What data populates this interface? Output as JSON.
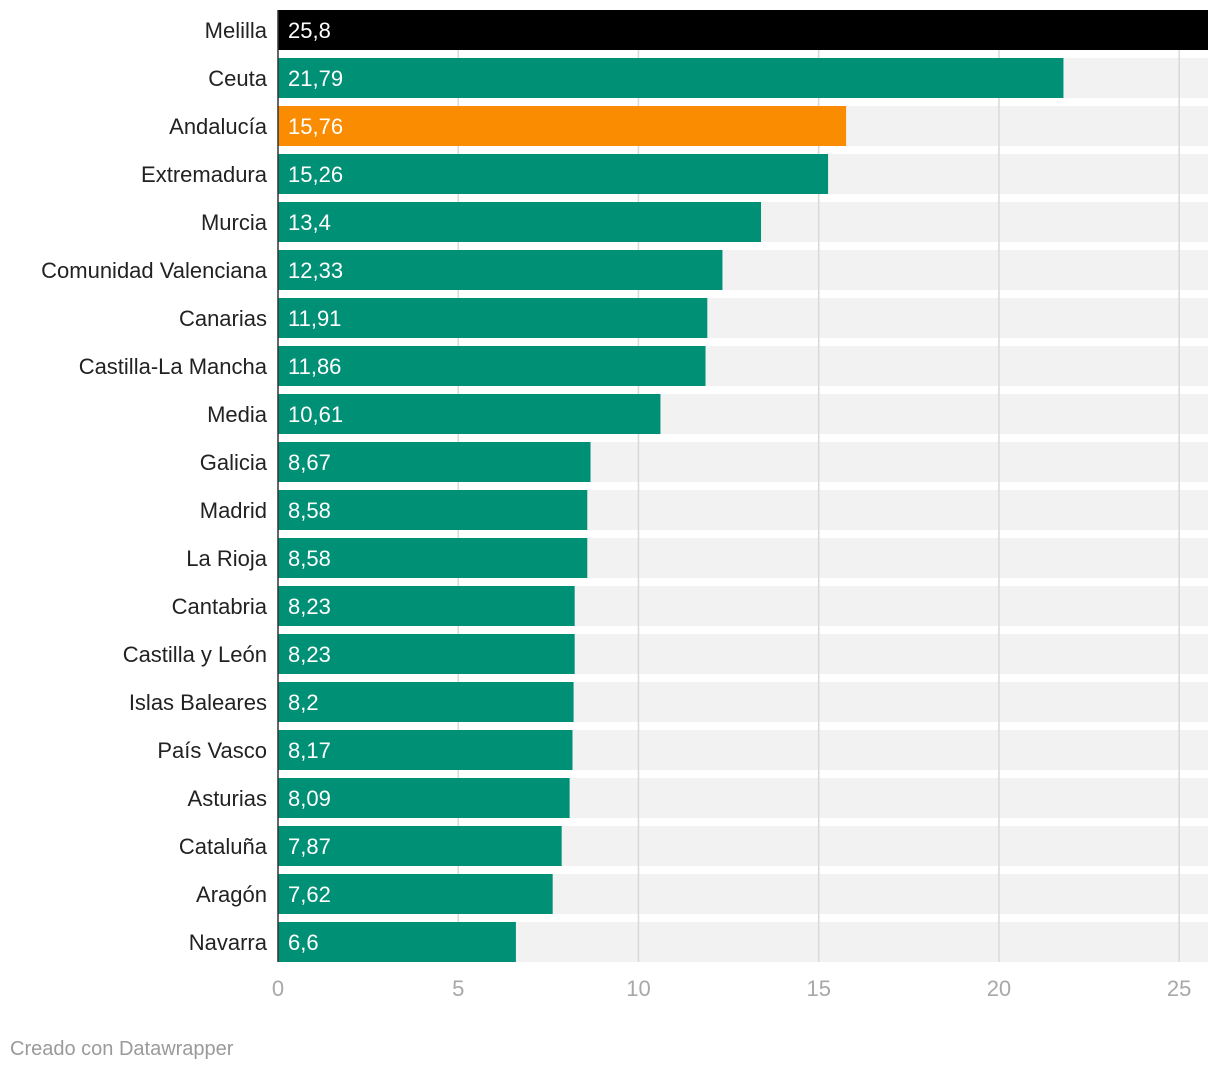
{
  "chart_data": {
    "type": "bar",
    "orientation": "horizontal",
    "categories": [
      "Melilla",
      "Ceuta",
      "Andalucía",
      "Extremadura",
      "Murcia",
      "Comunidad Valenciana",
      "Canarias",
      "Castilla-La Mancha",
      "Media",
      "Galicia",
      "Madrid",
      "La Rioja",
      "Cantabria",
      "Castilla y León",
      "Islas Baleares",
      "País Vasco",
      "Asturias",
      "Cataluña",
      "Aragón",
      "Navarra"
    ],
    "values": [
      25.8,
      21.79,
      15.76,
      15.26,
      13.4,
      12.33,
      11.91,
      11.86,
      10.61,
      8.67,
      8.58,
      8.58,
      8.23,
      8.23,
      8.2,
      8.17,
      8.09,
      7.87,
      7.62,
      6.6
    ],
    "value_labels": [
      "25,8",
      "21,79",
      "15,76",
      "15,26",
      "13,4",
      "12,33",
      "11,91",
      "11,86",
      "10,61",
      "8,67",
      "8,58",
      "8,58",
      "8,23",
      "8,23",
      "8,2",
      "8,17",
      "8,09",
      "7,87",
      "7,62",
      "6,6"
    ],
    "bar_colors": [
      "#000000",
      "#009076",
      "#f98c00",
      "#009076",
      "#009076",
      "#009076",
      "#009076",
      "#009076",
      "#009076",
      "#009076",
      "#009076",
      "#009076",
      "#009076",
      "#009076",
      "#009076",
      "#009076",
      "#009076",
      "#009076",
      "#009076",
      "#009076"
    ],
    "xlim": [
      0,
      25.8
    ],
    "xticks": [
      0,
      5,
      10,
      15,
      20,
      25
    ],
    "xtick_labels": [
      "0",
      "5",
      "10",
      "15",
      "20",
      "25"
    ],
    "grid": true,
    "background_track_color": "#f2f2f2",
    "title": "",
    "xlabel": "",
    "ylabel": ""
  },
  "footer": {
    "credit": "Creado con Datawrapper"
  }
}
